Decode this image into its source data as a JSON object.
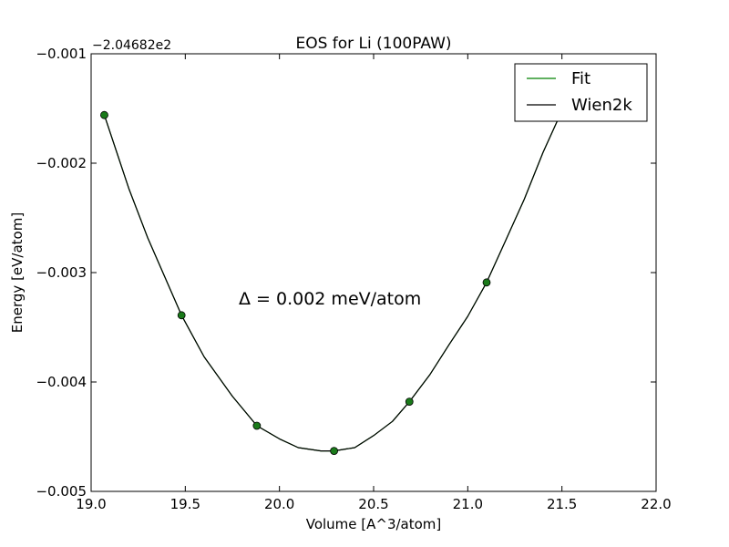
{
  "chart_data": {
    "type": "line",
    "title": "EOS for Li (100PAW)",
    "xlabel": "Volume [A^3/atom]",
    "ylabel": "Energy [eV/atom]",
    "y_offset_label": "−2.04682e2",
    "annotation": "Δ = 0.002 meV/atom",
    "xlim": [
      19.0,
      22.0
    ],
    "ylim": [
      -0.005,
      -0.001
    ],
    "x_ticks": [
      19.0,
      19.5,
      20.0,
      20.5,
      21.0,
      21.5,
      22.0
    ],
    "x_tick_labels": [
      "19.0",
      "19.5",
      "20.0",
      "20.5",
      "21.0",
      "21.5",
      "22.0"
    ],
    "y_ticks": [
      -0.005,
      -0.004,
      -0.003,
      -0.002,
      -0.001
    ],
    "y_tick_labels": [
      "−0.005",
      "−0.004",
      "−0.003",
      "−0.002",
      "−0.001"
    ],
    "grid": false,
    "legend_position": "top-right",
    "series": [
      {
        "name": "Fit",
        "kind": "line",
        "color": "#008000",
        "points": [
          [
            19.07,
            -0.00156
          ],
          [
            19.2,
            -0.00223
          ],
          [
            19.3,
            -0.00268
          ],
          [
            19.48,
            -0.00339
          ],
          [
            19.6,
            -0.00377
          ],
          [
            19.75,
            -0.00413
          ],
          [
            19.88,
            -0.0044
          ],
          [
            20.0,
            -0.00452
          ],
          [
            20.1,
            -0.0046
          ],
          [
            20.22,
            -0.00463
          ],
          [
            20.29,
            -0.00463
          ],
          [
            20.4,
            -0.0046
          ],
          [
            20.5,
            -0.00449
          ],
          [
            20.6,
            -0.00436
          ],
          [
            20.69,
            -0.00418
          ],
          [
            20.8,
            -0.00393
          ],
          [
            20.9,
            -0.00366
          ],
          [
            21.0,
            -0.0034
          ],
          [
            21.1,
            -0.00309
          ],
          [
            21.2,
            -0.00271
          ],
          [
            21.3,
            -0.00233
          ],
          [
            21.4,
            -0.0019
          ],
          [
            21.5,
            -0.00152
          ],
          [
            21.58,
            -0.0012
          ]
        ]
      },
      {
        "name": "Wien2k",
        "kind": "line",
        "color": "#000000",
        "points": [
          [
            19.07,
            -0.00156
          ],
          [
            19.2,
            -0.00223
          ],
          [
            19.3,
            -0.00268
          ],
          [
            19.48,
            -0.00339
          ],
          [
            19.6,
            -0.00377
          ],
          [
            19.75,
            -0.00413
          ],
          [
            19.88,
            -0.0044
          ],
          [
            20.0,
            -0.00452
          ],
          [
            20.1,
            -0.0046
          ],
          [
            20.22,
            -0.00463
          ],
          [
            20.29,
            -0.00463
          ],
          [
            20.4,
            -0.0046
          ],
          [
            20.5,
            -0.00449
          ],
          [
            20.6,
            -0.00436
          ],
          [
            20.69,
            -0.00418
          ],
          [
            20.8,
            -0.00393
          ],
          [
            20.9,
            -0.00366
          ],
          [
            21.0,
            -0.0034
          ],
          [
            21.1,
            -0.00309
          ],
          [
            21.2,
            -0.00271
          ],
          [
            21.3,
            -0.00233
          ],
          [
            21.4,
            -0.0019
          ],
          [
            21.5,
            -0.00152
          ],
          [
            21.58,
            -0.0012
          ]
        ]
      },
      {
        "kind": "markers",
        "color": "#1a7a1a",
        "points": [
          [
            19.07,
            -0.00156
          ],
          [
            19.48,
            -0.00339
          ],
          [
            19.88,
            -0.0044
          ],
          [
            20.29,
            -0.00463
          ],
          [
            20.69,
            -0.00418
          ],
          [
            21.1,
            -0.00309
          ]
        ]
      }
    ]
  }
}
